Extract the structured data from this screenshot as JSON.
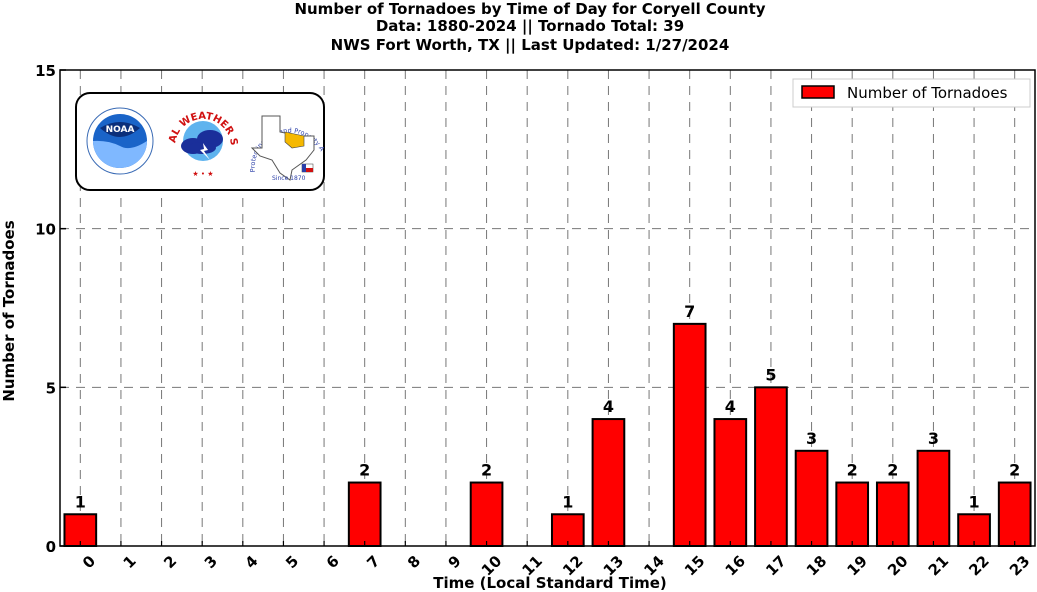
{
  "chart_data": {
    "type": "bar",
    "title": [
      "Number of Tornadoes by Time of Day for Coryell County",
      "Data: 1880-2024 || Tornado Total: 39",
      "NWS Fort Worth, TX || Last Updated: 1/27/2024"
    ],
    "xlabel": "Time (Local Standard Time)",
    "ylabel": "Number of Tornadoes",
    "categories": [
      "0",
      "1",
      "2",
      "3",
      "4",
      "5",
      "6",
      "7",
      "8",
      "9",
      "10",
      "11",
      "12",
      "13",
      "14",
      "15",
      "16",
      "17",
      "18",
      "19",
      "20",
      "21",
      "22",
      "23"
    ],
    "series": [
      {
        "name": "Number of Tornadoes",
        "values": [
          1,
          0,
          0,
          0,
          0,
          0,
          0,
          2,
          0,
          0,
          2,
          0,
          1,
          4,
          0,
          7,
          4,
          5,
          3,
          2,
          2,
          3,
          1,
          2
        ]
      }
    ],
    "data_labels": [
      "1",
      "",
      "",
      "",
      "",
      "",
      "",
      "2",
      "",
      "",
      "2",
      "",
      "1",
      "4",
      "",
      "7",
      "4",
      "5",
      "3",
      "2",
      "2",
      "3",
      "1",
      "2"
    ],
    "ylim": [
      0,
      15
    ],
    "yticks": [
      0,
      5,
      10,
      15
    ],
    "grid": true,
    "legend_position": "top-right",
    "bar_color": "#ff0000",
    "edge_color": "#000000"
  },
  "logos": {
    "noaa": "NOAA",
    "nws_top": "NATIONAL WEATHER SERVICE",
    "fw_arc": "Protecting Life and Property Across North Texas",
    "fw_since": "Since 1870"
  }
}
